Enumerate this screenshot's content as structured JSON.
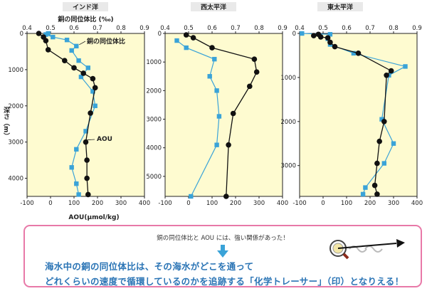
{
  "colors": {
    "plot_bg": "#fefbd0",
    "isotope": "#3aa3d8",
    "aou": "#111111",
    "title_bg": "#e9e9e9",
    "frame_pink": "#e879a8",
    "text_blue": "#2a74b5"
  },
  "chart_data": [
    {
      "type": "scatter",
      "title": "インド洋",
      "top_axis_label": "銅の同位体比 (‰)",
      "top_ticks": [
        "0.4",
        "0.5",
        "0.6",
        "0.7",
        "0.8",
        "0.9"
      ],
      "bottom_axis_label": "AOU(μmol/kg)",
      "bottom_ticks": [
        "-100",
        "0",
        "100",
        "200",
        "300",
        "400"
      ],
      "y_label": "深さ（m）",
      "y_ticks": [
        "0",
        "1000",
        "2000",
        "3000",
        "4000"
      ],
      "xlim_isotope": [
        0.4,
        0.9
      ],
      "xlim_aou": [
        -100,
        400
      ],
      "ylim_depth": [
        0,
        4500
      ],
      "series": [
        {
          "name": "銅の同位体比",
          "axis": "isotope",
          "marker": "square",
          "color": "#3aa3d8",
          "points": [
            [
              0.49,
              0
            ],
            [
              0.48,
              30
            ],
            [
              0.51,
              100
            ],
            [
              0.57,
              180
            ],
            [
              0.61,
              350
            ],
            [
              0.59,
              470
            ],
            [
              0.62,
              750
            ],
            [
              0.66,
              950
            ],
            [
              0.63,
              1200
            ],
            [
              0.68,
              1600
            ],
            [
              0.69,
              2000
            ],
            [
              0.65,
              2700
            ],
            [
              0.61,
              3200
            ],
            [
              0.59,
              3700
            ],
            [
              0.61,
              4150
            ],
            [
              0.62,
              4450
            ]
          ]
        },
        {
          "name": "AOU",
          "axis": "aou",
          "marker": "circle",
          "color": "#111111",
          "points": [
            [
              -50,
              0
            ],
            [
              -30,
              100
            ],
            [
              -20,
              200
            ],
            [
              -10,
              450
            ],
            [
              60,
              750
            ],
            [
              100,
              950
            ],
            [
              140,
              1100
            ],
            [
              180,
              1250
            ],
            [
              190,
              1500
            ],
            [
              170,
              2200
            ],
            [
              150,
              3000
            ],
            [
              155,
              3500
            ],
            [
              155,
              4000
            ],
            [
              160,
              4450
            ]
          ]
        }
      ],
      "annotations": [
        "銅の同位体比",
        "AOU"
      ]
    },
    {
      "type": "scatter",
      "title": "西太平洋",
      "top_ticks": [
        "0.4",
        "0.5",
        "0.6",
        "0.7",
        "0.8",
        "0.9"
      ],
      "bottom_ticks": [
        "-100",
        "0",
        "100",
        "200",
        "300",
        "400"
      ],
      "y_ticks": [
        "0",
        "1000",
        "2000",
        "3000",
        "4000",
        "5000"
      ],
      "xlim_isotope": [
        0.4,
        0.9
      ],
      "xlim_aou": [
        -100,
        400
      ],
      "ylim_depth": [
        0,
        5700
      ],
      "series": [
        {
          "name": "銅の同位体比",
          "axis": "isotope",
          "marker": "square",
          "color": "#3aa3d8",
          "points": [
            [
              0.45,
              250
            ],
            [
              0.49,
              500
            ],
            [
              0.61,
              900
            ],
            [
              0.59,
              1500
            ],
            [
              0.62,
              2000
            ],
            [
              0.63,
              2900
            ],
            [
              0.62,
              3900
            ],
            [
              0.51,
              5700
            ]
          ]
        },
        {
          "name": "AOU",
          "axis": "aou",
          "marker": "circle",
          "color": "#111111",
          "points": [
            [
              -10,
              50
            ],
            [
              20,
              150
            ],
            [
              100,
              500
            ],
            [
              280,
              900
            ],
            [
              290,
              1350
            ],
            [
              260,
              1850
            ],
            [
              190,
              2800
            ],
            [
              170,
              3900
            ],
            [
              160,
              5700
            ]
          ]
        }
      ]
    },
    {
      "type": "scatter",
      "title": "東太平洋",
      "top_ticks": [
        "0.4",
        "0.5",
        "0.6",
        "0.7",
        "0.8",
        "0.9"
      ],
      "bottom_ticks": [
        "-100",
        "0",
        "100",
        "200",
        "300",
        "400"
      ],
      "y_ticks": [
        "0",
        "1000",
        "2000",
        "3000"
      ],
      "xlim_isotope": [
        0.4,
        0.9
      ],
      "xlim_aou": [
        -100,
        400
      ],
      "ylim_depth": [
        0,
        3700
      ],
      "series": [
        {
          "name": "銅の同位体比",
          "axis": "isotope",
          "marker": "square",
          "color": "#3aa3d8",
          "points": [
            [
              0.41,
              0
            ],
            [
              0.53,
              20
            ],
            [
              0.52,
              120
            ],
            [
              0.53,
              250
            ],
            [
              0.63,
              450
            ],
            [
              0.85,
              750
            ],
            [
              0.78,
              950
            ],
            [
              0.75,
              1950
            ],
            [
              0.8,
              2500
            ],
            [
              0.76,
              2950
            ],
            [
              0.68,
              3500
            ],
            [
              0.67,
              3650
            ]
          ]
        },
        {
          "name": "AOU",
          "axis": "aou",
          "marker": "circle",
          "color": "#111111",
          "points": [
            [
              -40,
              50
            ],
            [
              -20,
              20
            ],
            [
              -10,
              80
            ],
            [
              20,
              100
            ],
            [
              30,
              200
            ],
            [
              50,
              300
            ],
            [
              150,
              450
            ],
            [
              290,
              850
            ],
            [
              270,
              950
            ],
            [
              260,
              2000
            ],
            [
              240,
              2450
            ],
            [
              230,
              2950
            ],
            [
              220,
              3450
            ],
            [
              230,
              3650
            ]
          ]
        }
      ]
    }
  ],
  "message": {
    "note": "銅の同位体比と AOU には、強い関係があった！",
    "line1": "海水中の銅の同位体比は、その海水がどこを通って",
    "line2": "どれくらいの速度で循環しているのかを追跡する「化学トレーサー」（印）となりえる！"
  }
}
